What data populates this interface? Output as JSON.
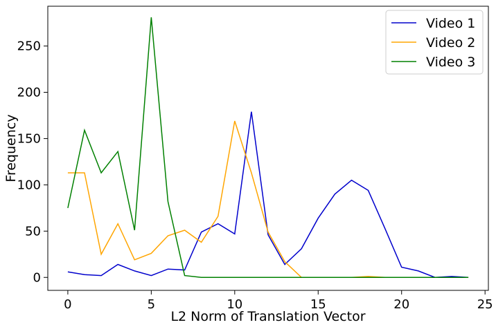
{
  "chart_data": {
    "type": "line",
    "title": "",
    "xlabel": "L2 Norm of Translation Vector",
    "ylabel": "Frequency",
    "xlim": [
      -1.2,
      25.2
    ],
    "ylim": [
      -14,
      293
    ],
    "x_ticks": [
      0,
      5,
      10,
      15,
      20,
      25
    ],
    "y_ticks": [
      0,
      50,
      100,
      150,
      200,
      250
    ],
    "grid": false,
    "legend_position": "top-right",
    "x": [
      0,
      1,
      2,
      3,
      4,
      5,
      6,
      7,
      8,
      9,
      10,
      11,
      12,
      13,
      14,
      15,
      16,
      17,
      18,
      19,
      20,
      21,
      22,
      23,
      24
    ],
    "series": [
      {
        "name": "Video 1",
        "color": "#0000cc",
        "values": [
          6,
          3,
          2,
          14,
          7,
          2,
          9,
          8,
          49,
          58,
          47,
          179,
          46,
          14,
          31,
          64,
          90,
          105,
          94,
          53,
          11,
          7,
          0,
          1,
          0
        ]
      },
      {
        "name": "Video 2",
        "color": "#ffa500",
        "values": [
          113,
          113,
          25,
          58,
          19,
          26,
          45,
          51,
          38,
          66,
          169,
          113,
          49,
          17,
          0,
          0,
          0,
          0,
          1,
          0,
          0,
          0,
          0,
          0,
          0
        ]
      },
      {
        "name": "Video 3",
        "color": "#008000",
        "values": [
          75,
          159,
          113,
          136,
          51,
          281,
          82,
          2,
          0,
          0,
          0,
          0,
          0,
          0,
          0,
          0,
          0,
          0,
          0,
          0,
          0,
          0,
          0,
          0,
          0
        ]
      }
    ]
  }
}
